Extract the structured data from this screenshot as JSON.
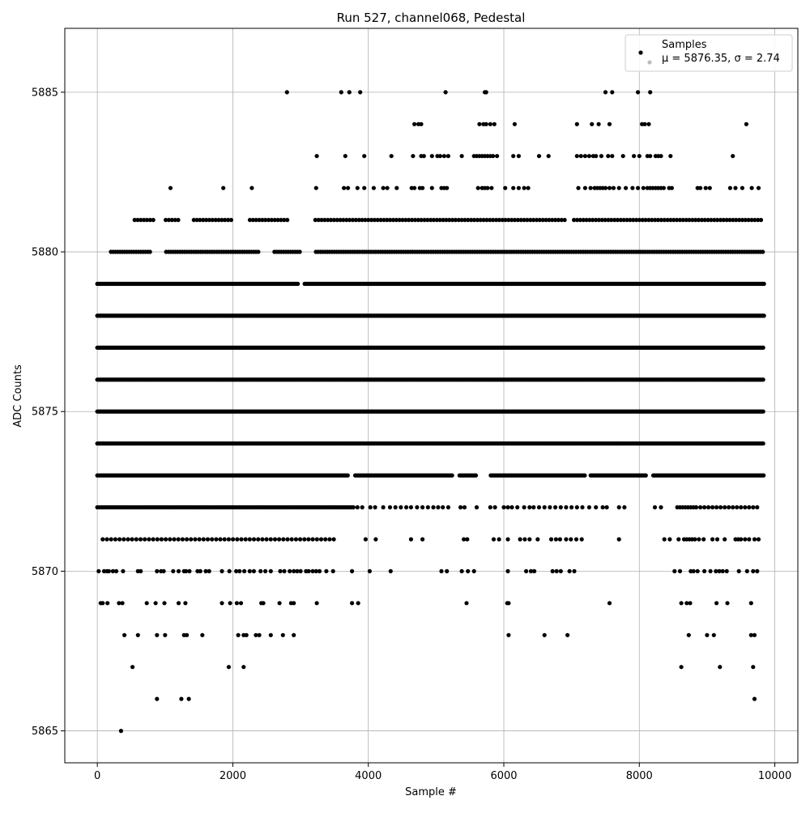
{
  "chart_data": {
    "type": "scatter",
    "title": "Run 527, channel068, Pedestal",
    "xlabel": "Sample #",
    "ylabel": "ADC Counts",
    "xlim": [
      -480,
      10340
    ],
    "ylim": [
      5864,
      5887
    ],
    "xticks": [
      0,
      2000,
      4000,
      6000,
      8000,
      10000
    ],
    "xtick_labels": [
      "0",
      "2000",
      "4000",
      "6000",
      "8000",
      "10000"
    ],
    "yticks": [
      5865,
      5870,
      5875,
      5880,
      5885
    ],
    "ytick_labels": [
      "5865",
      "5870",
      "5875",
      "5880",
      "5885"
    ],
    "grid": true,
    "legend_position": "top-right",
    "marker_color": "#000000",
    "series": [
      {
        "name": "Samples",
        "legend_extra": "μ = 5876.35, σ = 2.74",
        "point_count_note": "",
        "levels": [
          {
            "y": 5865,
            "x": [
              350
            ]
          },
          {
            "y": 5866,
            "x": [
              880,
              1240,
              1350,
              9700
            ]
          },
          {
            "y": 5867,
            "x": [
              520,
              1940,
              2160,
              8620,
              9190,
              9680
            ]
          },
          {
            "y": 5868,
            "x": [
              400,
              600,
              880,
              1000,
              1280,
              1320,
              1550,
              2080,
              2160,
              2200,
              2340,
              2390,
              2560,
              2740,
              2900,
              6070,
              6600,
              6940,
              8730,
              9000,
              9100,
              9650,
              9700
            ]
          },
          {
            "y": 5869,
            "x": [
              50,
              80,
              150,
              320,
              370,
              730,
              860,
              990,
              1200,
              1300,
              1840,
              1960,
              2060,
              2120,
              2420,
              2450,
              2690,
              2860,
              2900,
              3240,
              3760,
              3850,
              5450,
              6050,
              6070,
              7560,
              8620,
              8700,
              8750,
              9140,
              9300,
              9650
            ]
          },
          {
            "y": 5870,
            "x": [
              20,
              100,
              140,
              170,
              230,
              280,
              380,
              600,
              640,
              880,
              940,
              980,
              1120,
              1200,
              1280,
              1310,
              1360,
              1480,
              1520,
              1600,
              1650,
              1840,
              1950,
              2050,
              2100,
              2170,
              2250,
              2310,
              2410,
              2480,
              2560,
              2700,
              2760,
              2840,
              2900,
              2950,
              3000,
              3080,
              3120,
              3180,
              3230,
              3280,
              3380,
              3480,
              3760,
              4020,
              4330,
              5080,
              5160,
              5380,
              5470,
              5560,
              6060,
              6330,
              6400,
              6450,
              6720,
              6780,
              6840,
              6970,
              7040,
              8520,
              8600,
              8760,
              8800,
              8860,
              8960,
              9050,
              9130,
              9180,
              9230,
              9290,
              9470,
              9590,
              9680,
              9740
            ]
          }
        ],
        "dense_levels": [
          {
            "y": 5871,
            "x_start": 80,
            "x_end": 3550,
            "step": 62,
            "extra_x": [
              3960,
              4110,
              4630,
              4800,
              5410,
              5460,
              5850,
              5930,
              6060,
              6240,
              6310,
              6380,
              6500,
              6700,
              6770,
              6830,
              6920,
              6990,
              7070,
              7150,
              7700,
              8370,
              8450,
              8580,
              8660,
              8700,
              8740,
              8780,
              8820,
              8880,
              8950,
              9080,
              9150,
              9260,
              9420,
              9460,
              9500,
              9560,
              9620,
              9700,
              9760
            ]
          },
          {
            "y": 5872,
            "x_start": 0,
            "x_end": 3800,
            "step": 28,
            "extra_x": [
              3840,
              3910,
              4030,
              4100,
              4220,
              4320,
              4400,
              4480,
              4560,
              4630,
              4720,
              4800,
              4880,
              4960,
              5030,
              5100,
              5180,
              5360,
              5420,
              5600,
              5800,
              5870,
              6000,
              6060,
              6120,
              6200,
              6300,
              6380,
              6440,
              6520,
              6600,
              6680,
              6760,
              6840,
              6920,
              7000,
              7080,
              7160,
              7260,
              7360,
              7460,
              7520,
              7700,
              7780,
              8230,
              8320,
              8560,
              8600,
              8640,
              8680,
              8720,
              8760,
              8800,
              8840,
              8900,
              8960,
              9020,
              9080,
              9140,
              9200,
              9260,
              9320,
              9380,
              9440,
              9500,
              9560,
              9620,
              9680,
              9740
            ]
          },
          {
            "y": 5873,
            "x_start": 0,
            "x_end": 9840,
            "step": 22,
            "gaps": [
              [
                3700,
                3790
              ],
              [
                5250,
                5330
              ],
              [
                5600,
                5800
              ],
              [
                7200,
                7280
              ],
              [
                8100,
                8200
              ]
            ]
          },
          {
            "y": 5874,
            "x_start": 0,
            "x_end": 9840,
            "step": 18,
            "gaps": []
          },
          {
            "y": 5875,
            "x_start": 0,
            "x_end": 9840,
            "step": 14,
            "gaps": []
          },
          {
            "y": 5876,
            "x_start": 0,
            "x_end": 9840,
            "step": 14,
            "gaps": []
          },
          {
            "y": 5877,
            "x_start": 0,
            "x_end": 9840,
            "step": 14,
            "gaps": []
          },
          {
            "y": 5878,
            "x_start": 0,
            "x_end": 9840,
            "step": 16,
            "gaps": []
          },
          {
            "y": 5879,
            "x_start": 0,
            "x_end": 9840,
            "step": 20,
            "gaps": [
              [
                2980,
                3050
              ]
            ]
          },
          {
            "y": 5880,
            "x_start": 200,
            "x_end": 9840,
            "step": 34,
            "gaps": [
              [
                800,
                1000
              ],
              [
                2400,
                2600
              ],
              [
                3000,
                3200
              ]
            ]
          },
          {
            "y": 5881,
            "x_start": 550,
            "x_end": 9840,
            "step": 46,
            "gaps": [
              [
                850,
                1000
              ],
              [
                1200,
                1400
              ],
              [
                2000,
                2240
              ],
              [
                2820,
                3180
              ],
              [
                6900,
                7000
              ]
            ]
          }
        ],
        "sparse_upper": [
          {
            "y": 5882,
            "x": [
              1080,
              1860,
              2280,
              3230,
              3640,
              3700,
              3840,
              3940,
              4080,
              4220,
              4280,
              4420,
              4640,
              4680,
              4760,
              4800,
              4940,
              5080,
              5120,
              5160,
              5620,
              5680,
              5720,
              5760,
              5820,
              6020,
              6140,
              6220,
              6300,
              6360,
              7100,
              7200,
              7280,
              7340,
              7380,
              7420,
              7460,
              7500,
              7560,
              7620,
              7700,
              7800,
              7900,
              7980,
              8060,
              8120,
              8160,
              8200,
              8240,
              8280,
              8320,
              8360,
              8440,
              8480,
              8860,
              8900,
              8980,
              9040,
              9340,
              9420,
              9520,
              9660,
              9760
            ]
          },
          {
            "y": 5883,
            "x": [
              3240,
              3660,
              3940,
              4340,
              4660,
              4780,
              4820,
              4940,
              5020,
              5060,
              5120,
              5180,
              5380,
              5560,
              5600,
              5640,
              5680,
              5720,
              5760,
              5800,
              5840,
              5900,
              6140,
              6220,
              6520,
              6660,
              7080,
              7140,
              7200,
              7260,
              7320,
              7360,
              7440,
              7540,
              7600,
              7760,
              7920,
              8000,
              8120,
              8160,
              8240,
              8280,
              8320,
              8460,
              9380
            ]
          },
          {
            "y": 5884,
            "x": [
              4680,
              4740,
              4780,
              5640,
              5700,
              5740,
              5800,
              5860,
              6160,
              7080,
              7300,
              7400,
              7560,
              8040,
              8080,
              8140,
              9580
            ]
          },
          {
            "y": 5885,
            "x": [
              2800,
              3600,
              3720,
              3880,
              5140,
              5720,
              5740,
              7500,
              7600,
              7980,
              8160
            ]
          }
        ]
      }
    ]
  }
}
